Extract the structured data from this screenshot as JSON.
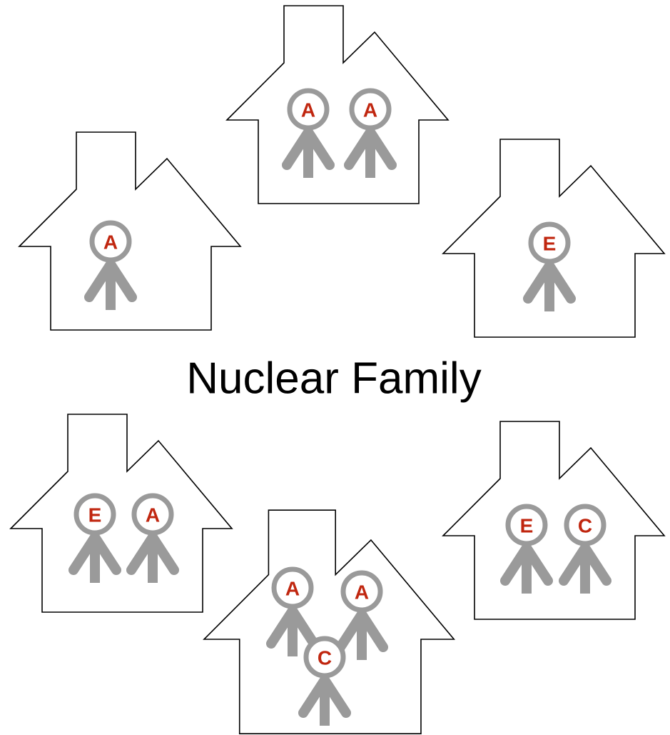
{
  "title": "Nuclear Family",
  "houses": [
    {
      "people": [
        "A",
        "A"
      ]
    },
    {
      "people": [
        "A"
      ]
    },
    {
      "people": [
        "E"
      ]
    },
    {
      "people": [
        "E",
        "A"
      ]
    },
    {
      "people": [
        "E",
        "C"
      ]
    },
    {
      "people": [
        "A",
        "A",
        "C"
      ]
    }
  ]
}
